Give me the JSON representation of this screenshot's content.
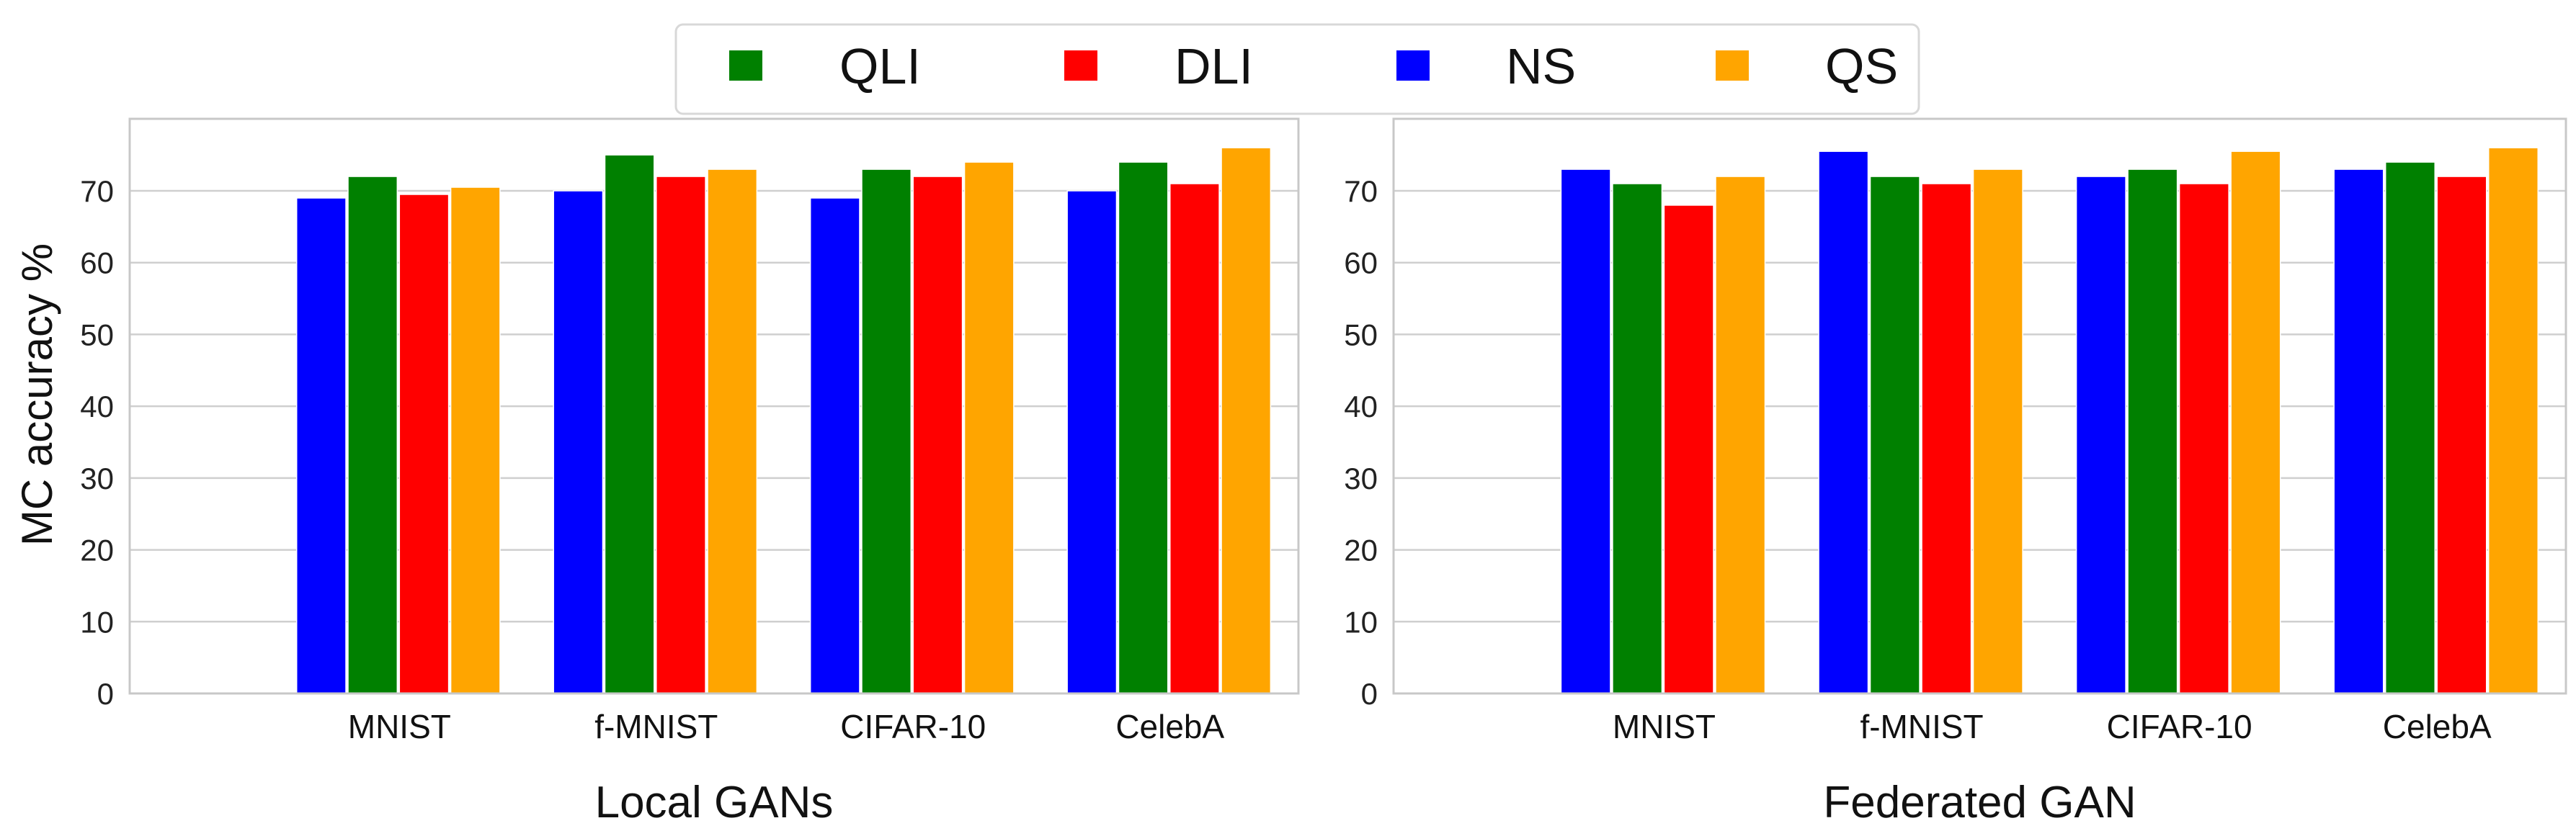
{
  "chart_data": [
    {
      "type": "bar",
      "xlabel": "Local GANs",
      "ylabel": "MC accuracy %",
      "ylim": [
        0,
        80
      ],
      "yticks": [
        0,
        10,
        20,
        30,
        40,
        50,
        60,
        70
      ],
      "grid": true,
      "categories": [
        "MNIST",
        "f-MNIST",
        "CIFAR-10",
        "CelebA"
      ],
      "series": [
        {
          "name": "NS",
          "color": "#0000ff",
          "values": [
            69,
            70,
            69,
            70
          ]
        },
        {
          "name": "QLI",
          "color": "#008000",
          "values": [
            72,
            75,
            73,
            74
          ]
        },
        {
          "name": "DLI",
          "color": "#ff0000",
          "values": [
            69.5,
            72,
            72,
            71
          ]
        },
        {
          "name": "QS",
          "color": "#ffa500",
          "values": [
            70.5,
            73,
            74,
            76
          ]
        }
      ]
    },
    {
      "type": "bar",
      "xlabel": "Federated GAN",
      "ylabel": "",
      "ylim": [
        0,
        80
      ],
      "yticks": [
        0,
        10,
        20,
        30,
        40,
        50,
        60,
        70
      ],
      "grid": true,
      "categories": [
        "MNIST",
        "f-MNIST",
        "CIFAR-10",
        "CelebA"
      ],
      "series": [
        {
          "name": "NS",
          "color": "#0000ff",
          "values": [
            73,
            75.5,
            72,
            73
          ]
        },
        {
          "name": "QLI",
          "color": "#008000",
          "values": [
            71,
            72,
            73,
            74
          ]
        },
        {
          "name": "DLI",
          "color": "#ff0000",
          "values": [
            68,
            71,
            71,
            72
          ]
        },
        {
          "name": "QS",
          "color": "#ffa500",
          "values": [
            72,
            73,
            75.5,
            76
          ]
        }
      ]
    }
  ],
  "legend": {
    "placement": "top-center",
    "entries": [
      {
        "label": "QLI",
        "color": "#008000"
      },
      {
        "label": "DLI",
        "color": "#ff0000"
      },
      {
        "label": "NS",
        "color": "#0000ff"
      },
      {
        "label": "QS",
        "color": "#ffa500"
      }
    ]
  }
}
